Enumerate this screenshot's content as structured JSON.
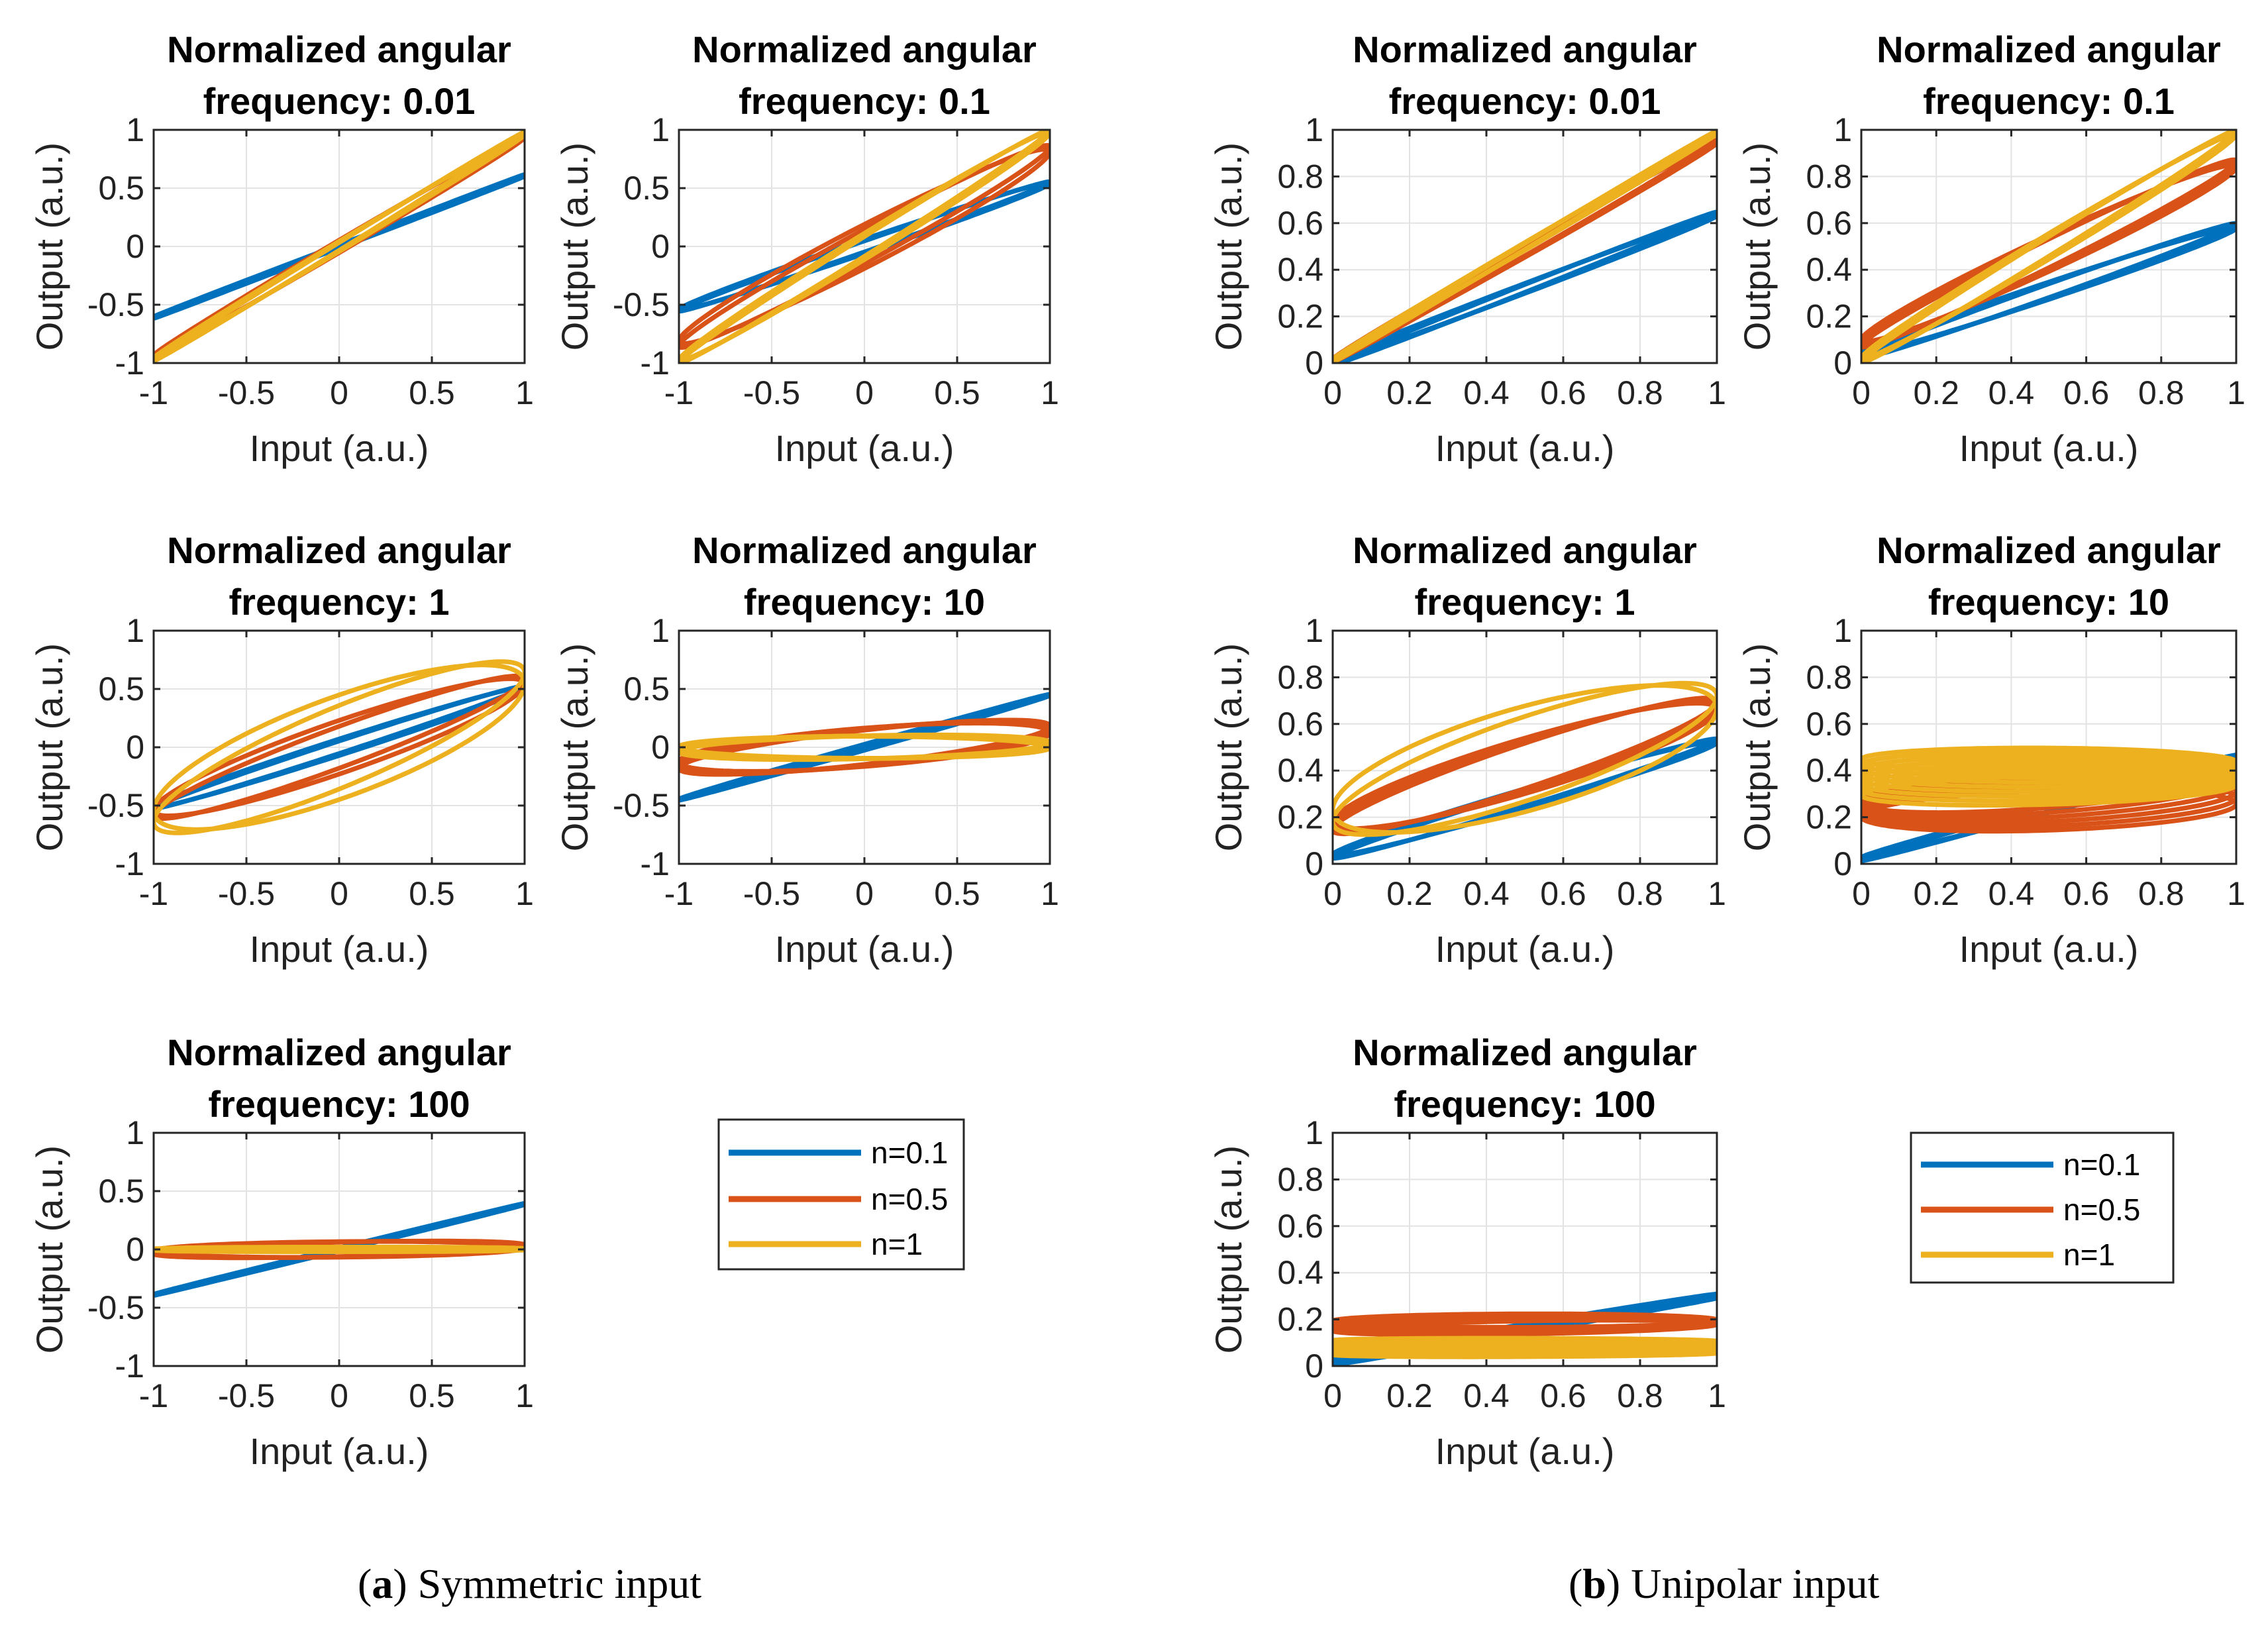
{
  "chart_data": [
    {
      "type": "line",
      "panel_group": "a",
      "title_line1": "Normalized angular",
      "title_line2": "frequency: 0.01",
      "xlabel": "Input (a.u.)",
      "ylabel": "Output (a.u.)",
      "xlim": [
        -1,
        1
      ],
      "ylim": [
        -1,
        1
      ],
      "xticks": [
        -1,
        -0.5,
        0,
        0.5,
        1
      ],
      "yticks": [
        -1,
        -0.5,
        0,
        0.5,
        1
      ],
      "xtick_labels": [
        "-1",
        "-0.5",
        "0",
        "0.5",
        "1"
      ],
      "ytick_labels": [
        "-1",
        "-0.5",
        "0",
        "0.5",
        "1"
      ],
      "grid": true,
      "mode": "sym",
      "series": [
        {
          "name": "n=0.1",
          "color": "#0072BD",
          "amp": 0.61,
          "offset": 0,
          "phase": 0.02,
          "count": 3,
          "spread": 0.006,
          "drift": 0
        },
        {
          "name": "n=0.5",
          "color": "#D95319",
          "amp": 0.95,
          "offset": 0,
          "phase": 0.05,
          "count": 3,
          "spread": 0.008,
          "drift": 0
        },
        {
          "name": "n=1",
          "color": "#EDB120",
          "amp": 0.97,
          "offset": 0,
          "phase": 0.04,
          "count": 3,
          "spread": 0.006,
          "drift": 0
        }
      ]
    },
    {
      "type": "line",
      "panel_group": "a",
      "title_line1": "Normalized angular",
      "title_line2": "frequency: 0.1",
      "xlabel": "Input (a.u.)",
      "ylabel": "Output (a.u.)",
      "xlim": [
        -1,
        1
      ],
      "ylim": [
        -1,
        1
      ],
      "xticks": [
        -1,
        -0.5,
        0,
        0.5,
        1
      ],
      "yticks": [
        -1,
        -0.5,
        0,
        0.5,
        1
      ],
      "xtick_labels": [
        "-1",
        "-0.5",
        "0",
        "0.5",
        "1"
      ],
      "ytick_labels": [
        "-1",
        "-0.5",
        "0",
        "0.5",
        "1"
      ],
      "grid": true,
      "mode": "sym",
      "series": [
        {
          "name": "n=0.1",
          "color": "#0072BD",
          "amp": 0.55,
          "offset": 0,
          "phase": 0.1,
          "count": 2,
          "spread": 0.01,
          "drift": 0
        },
        {
          "name": "n=0.5",
          "color": "#D95319",
          "amp": 0.85,
          "offset": 0,
          "phase": 0.2,
          "count": 2,
          "spread": 0.02,
          "drift": 0
        },
        {
          "name": "n=1",
          "color": "#EDB120",
          "amp": 0.99,
          "offset": 0,
          "phase": 0.1,
          "count": 2,
          "spread": 0.01,
          "drift": 0
        }
      ]
    },
    {
      "type": "line",
      "panel_group": "a",
      "title_line1": "Normalized angular",
      "title_line2": "frequency: 1",
      "xlabel": "Input (a.u.)",
      "ylabel": "Output (a.u.)",
      "xlim": [
        -1,
        1
      ],
      "ylim": [
        -1,
        1
      ],
      "xticks": [
        -1,
        -0.5,
        0,
        0.5,
        1
      ],
      "yticks": [
        -1,
        -0.5,
        0,
        0.5,
        1
      ],
      "xtick_labels": [
        "-1",
        "-0.5",
        "0",
        "0.5",
        "1"
      ],
      "ytick_labels": [
        "-1",
        "-0.5",
        "0",
        "0.5",
        "1"
      ],
      "grid": true,
      "mode": "sym",
      "series": [
        {
          "name": "n=0.1",
          "color": "#0072BD",
          "amp": 0.52,
          "offset": 0,
          "phase": 0.12,
          "count": 2,
          "spread": 0.01,
          "drift": 0
        },
        {
          "name": "n=0.5",
          "color": "#D95319",
          "amp": 0.6,
          "offset": 0,
          "phase": 0.35,
          "count": 2,
          "spread": 0.02,
          "drift": 0
        },
        {
          "name": "n=1",
          "color": "#EDB120",
          "amp": 0.72,
          "offset": 0,
          "phase": 0.6,
          "count": 2,
          "spread": 0.02,
          "drift": 0
        }
      ]
    },
    {
      "type": "line",
      "panel_group": "a",
      "title_line1": "Normalized angular",
      "title_line2": "frequency: 10",
      "xlabel": "Input (a.u.)",
      "ylabel": "Output (a.u.)",
      "xlim": [
        -1,
        1
      ],
      "ylim": [
        -1,
        1
      ],
      "xticks": [
        -1,
        -0.5,
        0,
        0.5,
        1
      ],
      "yticks": [
        -1,
        -0.5,
        0,
        0.5,
        1
      ],
      "xtick_labels": [
        "-1",
        "-0.5",
        "0",
        "0.5",
        "1"
      ],
      "ytick_labels": [
        "-1",
        "-0.5",
        "0",
        "0.5",
        "1"
      ],
      "grid": true,
      "mode": "sym",
      "series": [
        {
          "name": "n=0.1",
          "color": "#0072BD",
          "amp": 0.45,
          "offset": 0,
          "phase": 0.05,
          "count": 2,
          "spread": 0.01,
          "drift": 0
        },
        {
          "name": "n=0.5",
          "color": "#D95319",
          "amp": 0.22,
          "offset": 0,
          "phase": 0.8,
          "count": 4,
          "spread": 0.02,
          "drift": 0
        },
        {
          "name": "n=1",
          "color": "#EDB120",
          "amp": 0.1,
          "offset": 0,
          "phase": 1.4,
          "count": 5,
          "spread": 0.015,
          "drift": 0
        }
      ]
    },
    {
      "type": "line",
      "panel_group": "a",
      "title_line1": "Normalized angular",
      "title_line2": "frequency: 100",
      "xlabel": "Input (a.u.)",
      "ylabel": "Output (a.u.)",
      "xlim": [
        -1,
        1
      ],
      "ylim": [
        -1,
        1
      ],
      "xticks": [
        -1,
        -0.5,
        0,
        0.5,
        1
      ],
      "yticks": [
        -1,
        -0.5,
        0,
        0.5,
        1
      ],
      "xtick_labels": [
        "-1",
        "-0.5",
        "0",
        "0.5",
        "1"
      ],
      "ytick_labels": [
        "-1",
        "-0.5",
        "0",
        "0.5",
        "1"
      ],
      "grid": true,
      "mode": "sym",
      "series": [
        {
          "name": "n=0.1",
          "color": "#0072BD",
          "amp": 0.39,
          "offset": 0,
          "phase": 0.03,
          "count": 3,
          "spread": 0.006,
          "drift": 0
        },
        {
          "name": "n=0.5",
          "color": "#D95319",
          "amp": 0.07,
          "offset": 0,
          "phase": 1.2,
          "count": 4,
          "spread": 0.01,
          "drift": 0
        },
        {
          "name": "n=1",
          "color": "#EDB120",
          "amp": 0.02,
          "offset": 0,
          "phase": 1.5,
          "count": 3,
          "spread": 0.006,
          "drift": 0
        }
      ]
    },
    {
      "type": "line",
      "panel_group": "b",
      "title_line1": "Normalized angular",
      "title_line2": "frequency: 0.01",
      "xlabel": "Input (a.u.)",
      "ylabel": "Output (a.u.)",
      "xlim": [
        0,
        1
      ],
      "ylim": [
        0,
        1
      ],
      "xticks": [
        0,
        0.2,
        0.4,
        0.6,
        0.8,
        1
      ],
      "yticks": [
        0,
        0.2,
        0.4,
        0.6,
        0.8,
        1
      ],
      "xtick_labels": [
        "0",
        "0.2",
        "0.4",
        "0.6",
        "0.8",
        "1"
      ],
      "ytick_labels": [
        "0",
        "0.2",
        "0.4",
        "0.6",
        "0.8",
        "1"
      ],
      "grid": true,
      "mode": "uni",
      "series": [
        {
          "name": "n=0.1",
          "color": "#0072BD",
          "amp": 0.32,
          "offset": 0.32,
          "phase": 0.06,
          "count": 5,
          "spread": 0.006,
          "drift": 0
        },
        {
          "name": "n=0.5",
          "color": "#D95319",
          "amp": 0.47,
          "offset": 0.48,
          "phase": 0.05,
          "count": 3,
          "spread": 0.006,
          "drift": 0
        },
        {
          "name": "n=1",
          "color": "#EDB120",
          "amp": 0.49,
          "offset": 0.5,
          "phase": 0.03,
          "count": 3,
          "spread": 0.006,
          "drift": 0
        }
      ]
    },
    {
      "type": "line",
      "panel_group": "b",
      "title_line1": "Normalized angular",
      "title_line2": "frequency: 0.1",
      "xlabel": "Input (a.u.)",
      "ylabel": "Output (a.u.)",
      "xlim": [
        0,
        1
      ],
      "ylim": [
        0,
        1
      ],
      "xticks": [
        0,
        0.2,
        0.4,
        0.6,
        0.8,
        1
      ],
      "yticks": [
        0,
        0.2,
        0.4,
        0.6,
        0.8,
        1
      ],
      "xtick_labels": [
        "0",
        "0.2",
        "0.4",
        "0.6",
        "0.8",
        "1"
      ],
      "ytick_labels": [
        "0",
        "0.2",
        "0.4",
        "0.6",
        "0.8",
        "1"
      ],
      "grid": true,
      "mode": "uni",
      "series": [
        {
          "name": "n=0.1",
          "color": "#0072BD",
          "amp": 0.28,
          "offset": 0.31,
          "phase": 0.12,
          "count": 5,
          "spread": 0.008,
          "drift": 0
        },
        {
          "name": "n=0.5",
          "color": "#D95319",
          "amp": 0.39,
          "offset": 0.47,
          "phase": 0.18,
          "count": 4,
          "spread": 0.01,
          "drift": 0
        },
        {
          "name": "n=1",
          "color": "#EDB120",
          "amp": 0.49,
          "offset": 0.5,
          "phase": 0.1,
          "count": 3,
          "spread": 0.008,
          "drift": 0
        }
      ]
    },
    {
      "type": "line",
      "panel_group": "b",
      "title_line1": "Normalized angular",
      "title_line2": "frequency: 1",
      "xlabel": "Input (a.u.)",
      "ylabel": "Output (a.u.)",
      "xlim": [
        0,
        1
      ],
      "ylim": [
        0,
        1
      ],
      "xticks": [
        0,
        0.2,
        0.4,
        0.6,
        0.8,
        1
      ],
      "yticks": [
        0,
        0.2,
        0.4,
        0.6,
        0.8,
        1
      ],
      "xtick_labels": [
        "0",
        "0.2",
        "0.4",
        "0.6",
        "0.8",
        "1"
      ],
      "ytick_labels": [
        "0",
        "0.2",
        "0.4",
        "0.6",
        "0.8",
        "1"
      ],
      "grid": true,
      "mode": "uni",
      "series": [
        {
          "name": "n=0.1",
          "color": "#0072BD",
          "amp": 0.25,
          "offset": 0.28,
          "phase": 0.15,
          "count": 4,
          "spread": 0.008,
          "drift": 0
        },
        {
          "name": "n=0.5",
          "color": "#D95319",
          "amp": 0.28,
          "offset": 0.42,
          "phase": 0.4,
          "count": 5,
          "spread": 0.01,
          "drift": 0
        },
        {
          "name": "n=1",
          "color": "#EDB120",
          "amp": 0.32,
          "offset": 0.45,
          "phase": 0.7,
          "count": 2,
          "spread": 0.015,
          "drift": 0
        }
      ]
    },
    {
      "type": "line",
      "panel_group": "b",
      "title_line1": "Normalized angular",
      "title_line2": "frequency: 10",
      "xlabel": "Input (a.u.)",
      "ylabel": "Output (a.u.)",
      "xlim": [
        0,
        1
      ],
      "ylim": [
        0,
        1
      ],
      "xticks": [
        0,
        0.2,
        0.4,
        0.6,
        0.8,
        1
      ],
      "yticks": [
        0,
        0.2,
        0.4,
        0.6,
        0.8,
        1
      ],
      "xtick_labels": [
        "0",
        "0.2",
        "0.4",
        "0.6",
        "0.8",
        "1"
      ],
      "ytick_labels": [
        "0",
        "0.2",
        "0.4",
        "0.6",
        "0.8",
        "1"
      ],
      "grid": true,
      "mode": "uni",
      "series": [
        {
          "name": "n=0.1",
          "color": "#0072BD",
          "amp": 0.22,
          "offset": 0.24,
          "phase": 0.08,
          "count": 4,
          "spread": 0.01,
          "drift": 0
        },
        {
          "name": "n=0.5",
          "color": "#D95319",
          "amp": 0.1,
          "offset": 0.28,
          "phase": 1.1,
          "count": 6,
          "spread": 0.02,
          "drift": -0.02
        },
        {
          "name": "n=1",
          "color": "#EDB120",
          "amp": 0.06,
          "offset": 0.38,
          "phase": 1.45,
          "count": 8,
          "spread": 0.014,
          "drift": 0.018
        }
      ]
    },
    {
      "type": "line",
      "panel_group": "b",
      "title_line1": "Normalized angular",
      "title_line2": "frequency: 100",
      "xlabel": "Input (a.u.)",
      "ylabel": "Output (a.u.)",
      "xlim": [
        0,
        1
      ],
      "ylim": [
        0,
        1
      ],
      "xticks": [
        0,
        0.2,
        0.4,
        0.6,
        0.8,
        1
      ],
      "yticks": [
        0,
        0.2,
        0.4,
        0.6,
        0.8,
        1
      ],
      "xtick_labels": [
        "0",
        "0.2",
        "0.4",
        "0.6",
        "0.8",
        "1"
      ],
      "ytick_labels": [
        "0",
        "0.2",
        "0.4",
        "0.6",
        "0.8",
        "1"
      ],
      "grid": true,
      "mode": "uni",
      "series": [
        {
          "name": "n=0.1",
          "color": "#0072BD",
          "amp": 0.14,
          "offset": 0.16,
          "phase": 0.05,
          "count": 5,
          "spread": 0.006,
          "drift": 0.006
        },
        {
          "name": "n=0.5",
          "color": "#D95319",
          "amp": 0.03,
          "offset": 0.18,
          "phase": 1.3,
          "count": 7,
          "spread": 0.006,
          "drift": 0.005
        },
        {
          "name": "n=1",
          "color": "#EDB120",
          "amp": 0.012,
          "offset": 0.08,
          "phase": 1.5,
          "count": 9,
          "spread": 0.007,
          "drift": 0.007
        }
      ]
    }
  ],
  "legends": [
    {
      "group": "a",
      "entries": [
        {
          "label": "n=0.1",
          "color": "#0072BD"
        },
        {
          "label": "n=0.5",
          "color": "#D95319"
        },
        {
          "label": "n=1",
          "color": "#EDB120"
        }
      ]
    },
    {
      "group": "b",
      "entries": [
        {
          "label": "n=0.1",
          "color": "#0072BD"
        },
        {
          "label": "n=0.5",
          "color": "#D95319"
        },
        {
          "label": "n=1",
          "color": "#EDB120"
        }
      ]
    }
  ],
  "captions": {
    "a": {
      "letter": "a",
      "text": "Symmetric input"
    },
    "b": {
      "letter": "b",
      "text": "Unipolar input"
    }
  }
}
